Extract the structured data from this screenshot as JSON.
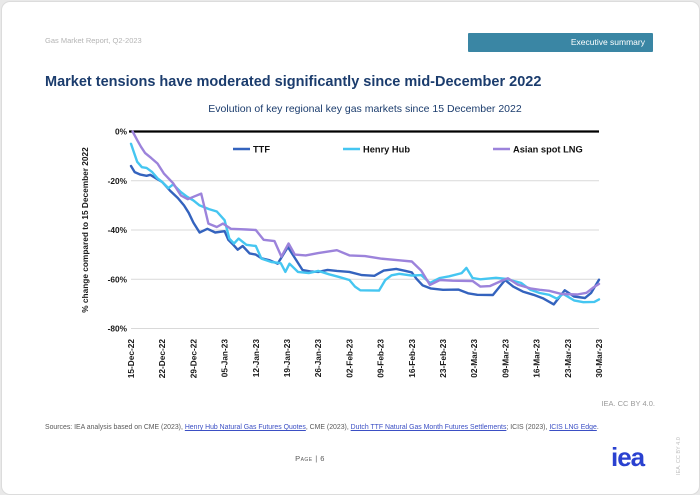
{
  "header": {
    "report_label": "Gas Market Report, Q2-2023",
    "section_label": "Executive summary"
  },
  "title": "Market tensions have moderated significantly since mid-December 2022",
  "chart_data": {
    "type": "line",
    "title": "Evolution of key regional key gas markets since 15 December 2022",
    "ylabel": "% change compared to 15 December 2022",
    "ylim": [
      -80,
      0
    ],
    "y_tick_labels": [
      "0%",
      "-20%",
      "-40%",
      "-60%",
      "-80%"
    ],
    "x_tick_labels": [
      "15-Dec-22",
      "22-Dec-22",
      "29-Dec-22",
      "05-Jan-23",
      "12-Jan-23",
      "19-Jan-23",
      "26-Jan-23",
      "02-Feb-23",
      "09-Feb-23",
      "16-Feb-23",
      "23-Feb-23",
      "02-Mar-23",
      "09-Mar-23",
      "16-Mar-23",
      "23-Mar-23",
      "30-Mar-23"
    ],
    "x_unit": "weeks since 15 December 2022",
    "x_range": [
      0,
      15
    ],
    "grid": "horizontal",
    "legend_position": "top-inside",
    "axis_color": "#000000",
    "grid_color": "#d9d9d9",
    "series": [
      {
        "name": "TTF",
        "color": "#3463be",
        "points": [
          [
            0,
            -14
          ],
          [
            0.12,
            -16.5
          ],
          [
            0.3,
            -17.5
          ],
          [
            0.5,
            -18
          ],
          [
            0.62,
            -17.6
          ],
          [
            0.8,
            -19
          ],
          [
            1,
            -20.5
          ],
          [
            1.25,
            -24
          ],
          [
            1.5,
            -27
          ],
          [
            1.7,
            -30
          ],
          [
            1.85,
            -33
          ],
          [
            2,
            -37
          ],
          [
            2.2,
            -41
          ],
          [
            2.45,
            -39.5
          ],
          [
            2.7,
            -41
          ],
          [
            3,
            -40.5
          ],
          [
            3.12,
            -44
          ],
          [
            3.28,
            -46
          ],
          [
            3.42,
            -48
          ],
          [
            3.58,
            -46.5
          ],
          [
            3.8,
            -49.5
          ],
          [
            4,
            -50
          ],
          [
            4.18,
            -51.5
          ],
          [
            4.45,
            -52.3
          ],
          [
            4.7,
            -53.7
          ],
          [
            5.03,
            -46.9
          ],
          [
            5.2,
            -50.3
          ],
          [
            5.5,
            -56.3
          ],
          [
            5.75,
            -56.8
          ],
          [
            6,
            -57
          ],
          [
            6.3,
            -56.2
          ],
          [
            6.6,
            -56.6
          ],
          [
            7,
            -57
          ],
          [
            7.4,
            -58.3
          ],
          [
            7.8,
            -58.6
          ],
          [
            8.1,
            -56.5
          ],
          [
            8.5,
            -55.8
          ],
          [
            8.8,
            -56.6
          ],
          [
            9,
            -57.2
          ],
          [
            9.15,
            -59.8
          ],
          [
            9.35,
            -62.5
          ],
          [
            9.6,
            -63.7
          ],
          [
            10,
            -64.3
          ],
          [
            10.5,
            -64.2
          ],
          [
            10.8,
            -65.7
          ],
          [
            11.1,
            -66.3
          ],
          [
            11.6,
            -66.4
          ],
          [
            11.99,
            -60.3
          ],
          [
            12.25,
            -63
          ],
          [
            12.56,
            -65
          ],
          [
            12.9,
            -66.3
          ],
          [
            13.2,
            -67.7
          ],
          [
            13.55,
            -70.2
          ],
          [
            13.9,
            -64.5
          ],
          [
            14.2,
            -67
          ],
          [
            14.55,
            -67.6
          ],
          [
            14.75,
            -65.5
          ],
          [
            15,
            -60.2
          ]
        ]
      },
      {
        "name": "Henry Hub",
        "color": "#45c6f1",
        "points": [
          [
            0,
            -5
          ],
          [
            0.1,
            -8.7
          ],
          [
            0.2,
            -12.3
          ],
          [
            0.35,
            -14.5
          ],
          [
            0.5,
            -14.8
          ],
          [
            0.68,
            -16.5
          ],
          [
            0.85,
            -19
          ],
          [
            1,
            -20.5
          ],
          [
            1.2,
            -23
          ],
          [
            1.35,
            -21.5
          ],
          [
            1.6,
            -24.6
          ],
          [
            1.8,
            -26.5
          ],
          [
            2,
            -28
          ],
          [
            2.2,
            -30
          ],
          [
            2.5,
            -31.5
          ],
          [
            2.75,
            -32.5
          ],
          [
            3,
            -36
          ],
          [
            3.15,
            -43.5
          ],
          [
            3.3,
            -45.5
          ],
          [
            3.45,
            -43.5
          ],
          [
            3.7,
            -46
          ],
          [
            4,
            -46.5
          ],
          [
            4.18,
            -51.6
          ],
          [
            4.5,
            -53
          ],
          [
            4.8,
            -53.5
          ],
          [
            4.95,
            -57
          ],
          [
            5.08,
            -53.7
          ],
          [
            5.35,
            -57
          ],
          [
            5.7,
            -57.5
          ],
          [
            6,
            -56.6
          ],
          [
            6.35,
            -58
          ],
          [
            6.65,
            -59
          ],
          [
            7,
            -60.3
          ],
          [
            7.18,
            -63
          ],
          [
            7.35,
            -64.5
          ],
          [
            7.95,
            -64.6
          ],
          [
            8.15,
            -60.3
          ],
          [
            8.35,
            -58.4
          ],
          [
            8.6,
            -57.8
          ],
          [
            9,
            -58.5
          ],
          [
            9.3,
            -58.3
          ],
          [
            9.58,
            -61.5
          ],
          [
            9.9,
            -59.5
          ],
          [
            10.2,
            -58.8
          ],
          [
            10.6,
            -57.5
          ],
          [
            10.75,
            -55.4
          ],
          [
            10.95,
            -59.5
          ],
          [
            11.2,
            -60
          ],
          [
            11.7,
            -59.4
          ],
          [
            12,
            -59.8
          ],
          [
            12.5,
            -61.5
          ],
          [
            12.8,
            -64.3
          ],
          [
            13.1,
            -65.6
          ],
          [
            13.4,
            -66.3
          ],
          [
            13.65,
            -67.9
          ],
          [
            13.85,
            -65.9
          ],
          [
            14.2,
            -68.6
          ],
          [
            14.5,
            -69.3
          ],
          [
            14.85,
            -69.2
          ],
          [
            15,
            -68.2
          ]
        ]
      },
      {
        "name": "Asian spot LNG",
        "color": "#9c83db",
        "points": [
          [
            0.05,
            0
          ],
          [
            0.2,
            -3.5
          ],
          [
            0.32,
            -6.2
          ],
          [
            0.45,
            -8.7
          ],
          [
            0.65,
            -10.8
          ],
          [
            0.85,
            -13
          ],
          [
            1.05,
            -17
          ],
          [
            1.35,
            -21
          ],
          [
            1.6,
            -26
          ],
          [
            1.82,
            -27.5
          ],
          [
            2,
            -26.5
          ],
          [
            2.25,
            -25.2
          ],
          [
            2.48,
            -37.4
          ],
          [
            2.75,
            -38.8
          ],
          [
            2.95,
            -37.4
          ],
          [
            3.2,
            -39.5
          ],
          [
            3.7,
            -39.8
          ],
          [
            4,
            -40
          ],
          [
            4.25,
            -44
          ],
          [
            4.6,
            -44.5
          ],
          [
            4.82,
            -50.8
          ],
          [
            5.05,
            -45.5
          ],
          [
            5.25,
            -50
          ],
          [
            5.6,
            -50.3
          ],
          [
            6,
            -49.4
          ],
          [
            6.6,
            -48.2
          ],
          [
            7,
            -50.3
          ],
          [
            7.5,
            -50.6
          ],
          [
            8,
            -51.6
          ],
          [
            8.6,
            -52.3
          ],
          [
            9,
            -52.8
          ],
          [
            9.3,
            -56.5
          ],
          [
            9.58,
            -62.3
          ],
          [
            9.9,
            -60.3
          ],
          [
            10.3,
            -60.6
          ],
          [
            10.95,
            -60.7
          ],
          [
            11.2,
            -63
          ],
          [
            11.5,
            -62.8
          ],
          [
            11.9,
            -60.5
          ],
          [
            12.08,
            -59.6
          ],
          [
            12.4,
            -62.2
          ],
          [
            12.8,
            -63.7
          ],
          [
            13.1,
            -64.3
          ],
          [
            13.4,
            -64.7
          ],
          [
            13.8,
            -66
          ],
          [
            14.3,
            -66.2
          ],
          [
            14.6,
            -65.5
          ],
          [
            14.8,
            -63.5
          ],
          [
            15,
            -61.9
          ]
        ]
      }
    ]
  },
  "attribution": "IEA. CC BY 4.0.",
  "sources": {
    "parts": [
      {
        "text": "Sources: IEA analysis based on CME (2023), ",
        "link": false
      },
      {
        "text": "Henry Hub Natural Gas Futures Quotes",
        "link": true
      },
      {
        "text": ", CME (2023), ",
        "link": false
      },
      {
        "text": "Dutch TTF Natural Gas Month Futures Settlements",
        "link": true
      },
      {
        "text": "; ICIS (2023), ",
        "link": false
      },
      {
        "text": "ICIS LNG Edge",
        "link": true
      },
      {
        "text": ".",
        "link": false
      }
    ]
  },
  "footer": {
    "page_label": "Page | 6",
    "logo_text": "iea",
    "side_attribution": "IEA. CC BY 4.0"
  }
}
